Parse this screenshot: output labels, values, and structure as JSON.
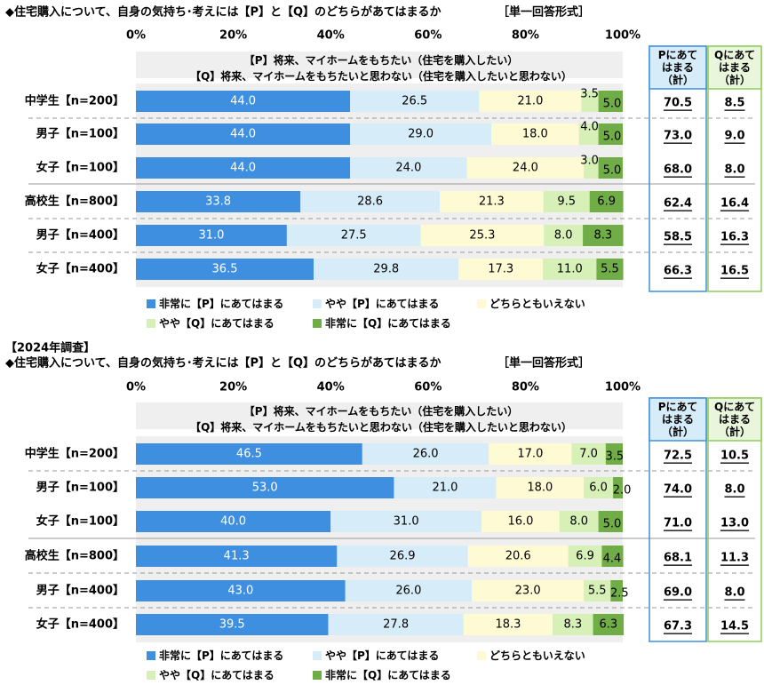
{
  "colors": {
    "series": [
      "#3f8fe0",
      "#d6ecf9",
      "#fefbd4",
      "#d7f0b8",
      "#70ad47"
    ],
    "p_box_border": "#3f8fe0",
    "p_box_fill": "#d6ecf9",
    "q_box_border": "#8fcc5a",
    "q_box_fill": "#e9f6dc"
  },
  "chart_data": [
    {
      "type": "bar",
      "stacked": true,
      "orientation": "horizontal",
      "title": "◆住宅購入について、自身の気持ち･考えには【P】と【Q】のどちらがあてはまるか",
      "format": "［単一回答形式］",
      "statement_p": "【P】将来、マイホームをもちたい（住宅を購入したい）",
      "statement_q": "【Q】将来、マイホームをもちたいと思わない（住宅を購入したいと思わない）",
      "categories": [
        "中学生【n=200】",
        "男子【n=100】",
        "女子【n=100】",
        "高校生【n=800】",
        "男子【n=400】",
        "女子【n=400】"
      ],
      "x_ticks": [
        "0%",
        "20%",
        "40%",
        "60%",
        "80%",
        "100%"
      ],
      "xlim": [
        0,
        100
      ],
      "legend_position": "bottom",
      "series": [
        {
          "name": "非常に【P】にあてはまる",
          "values": [
            44.0,
            44.0,
            44.0,
            33.8,
            31.0,
            36.5
          ],
          "labels": [
            "44.0",
            "44.0",
            "44.0",
            "33.8",
            "31.0",
            "36.5"
          ]
        },
        {
          "name": "やや【P】にあてはまる",
          "values": [
            26.5,
            29.0,
            24.0,
            28.6,
            27.5,
            29.8
          ],
          "labels": [
            "26.5",
            "29.0",
            "24.0",
            "28.6",
            "27.5",
            "29.8"
          ]
        },
        {
          "name": "どちらともいえない",
          "values": [
            21.0,
            18.0,
            24.0,
            21.3,
            25.3,
            17.3
          ],
          "labels": [
            "21.0",
            "18.0",
            "24.0",
            "21.3",
            "25.3",
            "17.3"
          ]
        },
        {
          "name": "やや【Q】にあてはまる",
          "values": [
            3.5,
            4.0,
            3.0,
            9.5,
            8.0,
            11.0
          ],
          "labels": [
            "3.5",
            "4.0",
            "3.0",
            "9.5",
            "8.0",
            "11.0"
          ]
        },
        {
          "name": "非常に【Q】にあてはまる",
          "values": [
            5.0,
            5.0,
            5.0,
            6.9,
            8.3,
            5.5
          ],
          "labels": [
            "5.0",
            "5.0",
            "5.0",
            "6.9",
            "8.3",
            "5.5"
          ]
        }
      ],
      "p_total_header": "Pにあてはまる（計）",
      "q_total_header": "Qにあてはまる（計）",
      "p_totals": [
        "70.5",
        "73.0",
        "68.0",
        "62.4",
        "58.5",
        "66.3"
      ],
      "q_totals": [
        "8.5",
        "9.0",
        "8.0",
        "16.4",
        "16.3",
        "16.5"
      ]
    },
    {
      "type": "bar",
      "stacked": true,
      "orientation": "horizontal",
      "heading": "【2024年調査】",
      "title": "◆住宅購入について、自身の気持ち･考えには【P】と【Q】のどちらがあてはまるか",
      "format": "［単一回答形式］",
      "statement_p": "【P】将来、マイホームをもちたい（住宅を購入したい）",
      "statement_q": "【Q】将来、マイホームをもちたいと思わない（住宅を購入したいと思わない）",
      "categories": [
        "中学生【n=200】",
        "男子【n=100】",
        "女子【n=100】",
        "高校生【n=800】",
        "男子【n=400】",
        "女子【n=400】"
      ],
      "x_ticks": [
        "0%",
        "20%",
        "40%",
        "60%",
        "80%",
        "100%"
      ],
      "xlim": [
        0,
        100
      ],
      "legend_position": "bottom",
      "series": [
        {
          "name": "非常に【P】にあてはまる",
          "values": [
            46.5,
            53.0,
            40.0,
            41.3,
            43.0,
            39.5
          ],
          "labels": [
            "46.5",
            "53.0",
            "40.0",
            "41.3",
            "43.0",
            "39.5"
          ]
        },
        {
          "name": "やや【P】にあてはまる",
          "values": [
            26.0,
            21.0,
            31.0,
            26.9,
            26.0,
            27.8
          ],
          "labels": [
            "26.0",
            "21.0",
            "31.0",
            "26.9",
            "26.0",
            "27.8"
          ]
        },
        {
          "name": "どちらともいえない",
          "values": [
            17.0,
            18.0,
            16.0,
            20.6,
            23.0,
            18.3
          ],
          "labels": [
            "17.0",
            "18.0",
            "16.0",
            "20.6",
            "23.0",
            "18.3"
          ]
        },
        {
          "name": "やや【Q】にあてはまる",
          "values": [
            7.0,
            6.0,
            8.0,
            6.9,
            5.5,
            8.3
          ],
          "labels": [
            "7.0",
            "6.0",
            "8.0",
            "6.9",
            "5.5",
            "8.3"
          ]
        },
        {
          "name": "非常に【Q】にあてはまる",
          "values": [
            3.5,
            2.0,
            5.0,
            4.4,
            2.5,
            6.3
          ],
          "labels": [
            "3.5",
            "2.0",
            "5.0",
            "4.4",
            "2.5",
            "6.3"
          ]
        }
      ],
      "p_total_header": "Pにあてはまる（計）",
      "q_total_header": "Qにあてはまる（計）",
      "p_totals": [
        "72.5",
        "74.0",
        "71.0",
        "68.1",
        "69.0",
        "67.3"
      ],
      "q_totals": [
        "10.5",
        "8.0",
        "13.0",
        "11.3",
        "8.0",
        "14.5"
      ]
    }
  ]
}
